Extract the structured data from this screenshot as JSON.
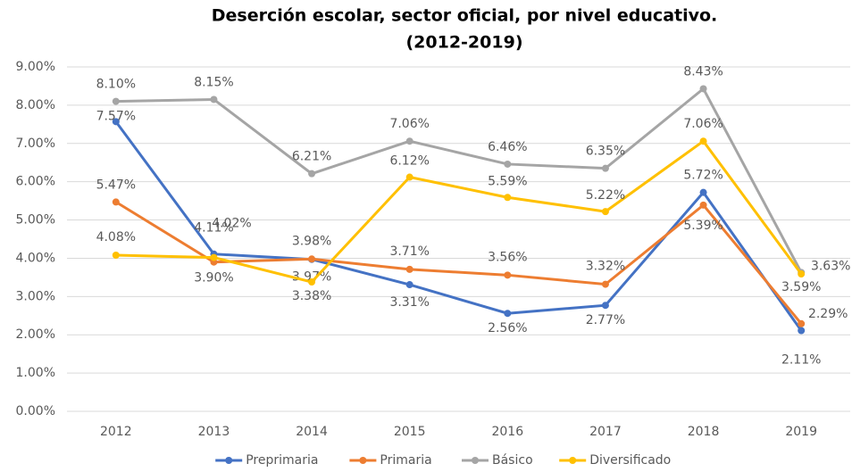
{
  "chart_data": {
    "type": "line",
    "title": "Deserción escolar, sector oficial, por nivel educativo.",
    "subtitle": "(2012-2019)",
    "categories": [
      "2012",
      "2013",
      "2014",
      "2015",
      "2016",
      "2017",
      "2018",
      "2019"
    ],
    "series": [
      {
        "name": "Preprimaria",
        "color": "#4472c4",
        "values": [
          7.57,
          4.11,
          3.97,
          3.31,
          2.56,
          2.77,
          5.72,
          2.11
        ],
        "value_labels": [
          "7.57%",
          "4.11%",
          "3.97%",
          "3.31%",
          "2.56%",
          "2.77%",
          "5.72%",
          "2.11%"
        ]
      },
      {
        "name": "Primaria",
        "color": "#ed7d31",
        "values": [
          5.47,
          3.9,
          3.98,
          3.71,
          3.56,
          3.32,
          5.39,
          2.29
        ],
        "value_labels": [
          "5.47%",
          "3.90%",
          "3.98%",
          "3.71%",
          "3.56%",
          "3.32%",
          "5.39%",
          "2.29%"
        ]
      },
      {
        "name": "Básico",
        "color": "#a5a5a5",
        "values": [
          8.1,
          8.15,
          6.21,
          7.06,
          6.46,
          6.35,
          8.43,
          3.63
        ],
        "value_labels": [
          "8.10%",
          "8.15%",
          "6.21%",
          "7.06%",
          "6.46%",
          "6.35%",
          "8.43%",
          "3.63%"
        ]
      },
      {
        "name": "Diversificado",
        "color": "#ffc000",
        "values": [
          4.08,
          4.02,
          3.38,
          6.12,
          5.59,
          5.22,
          7.06,
          3.59
        ],
        "value_labels": [
          "4.08%",
          "4.02%",
          "3.38%",
          "6.12%",
          "5.59%",
          "5.22%",
          "7.06%",
          "3.59%"
        ]
      }
    ],
    "ylim": [
      0,
      9
    ],
    "yticks": [
      {
        "value": 0,
        "label": "0.00%"
      },
      {
        "value": 1,
        "label": "1.00%"
      },
      {
        "value": 2,
        "label": "2.00%"
      },
      {
        "value": 3,
        "label": "3.00%"
      },
      {
        "value": 4,
        "label": "4.00%"
      },
      {
        "value": 5,
        "label": "5.00%"
      },
      {
        "value": 6,
        "label": "6.00%"
      },
      {
        "value": 7,
        "label": "7.00%"
      },
      {
        "value": 8,
        "label": "8.00%"
      },
      {
        "value": 9,
        "label": "9.00%"
      }
    ],
    "grid": true,
    "legend": "bottom"
  }
}
